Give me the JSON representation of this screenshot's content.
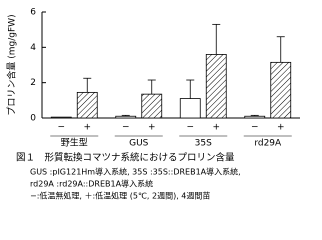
{
  "chart_data": {
    "type": "bar",
    "y_label": "プロリン含量 (mg/gFW)",
    "categories": [
      "野生型",
      "GUS",
      "35S",
      "rd29A"
    ],
    "series": [
      {
        "name": "−",
        "color": "#ffffff",
        "pattern": "none",
        "values": [
          0.05,
          0.1,
          1.1,
          0.1
        ],
        "errors": [
          0,
          0.05,
          1.05,
          0.05
        ]
      },
      {
        "name": "+",
        "color": "#ffffff",
        "pattern": "hatch",
        "values": [
          1.45,
          1.35,
          3.6,
          3.15
        ],
        "errors": [
          0.8,
          0.8,
          1.7,
          1.45
        ]
      }
    ],
    "ylim": [
      0,
      6
    ],
    "yticks": [
      0,
      2,
      4,
      6
    ]
  },
  "caption": {
    "title": "図１　形質転換コマツナ系統におけるプロリン含量",
    "notes": [
      "GUS :pIG121Hm導入系統, 35S :35S::DREB1A導入系統,",
      "rd29A :rd29A::DREB1A導入系統",
      "−:低温無処理, ＋:低温処理 (5℃, 2週間), 4週間苗"
    ]
  }
}
